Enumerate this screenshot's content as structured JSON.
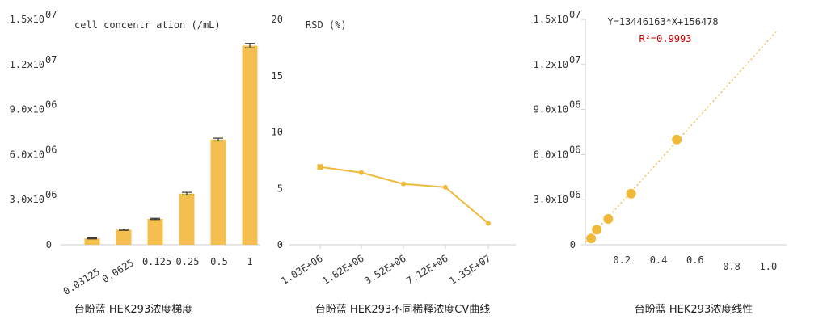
{
  "chart_data": [
    {
      "type": "bar",
      "title": "cell concentr ation (/mL)",
      "caption": "台盼蓝 HEK293浓度梯度",
      "categories": [
        "0.03125",
        "0.0625",
        "0.125",
        "0.25",
        "0.5",
        "1"
      ],
      "values": [
        420000,
        1000000,
        1720000,
        3400000,
        7000000,
        13250000
      ],
      "errors": [
        30000,
        40000,
        40000,
        90000,
        90000,
        150000
      ],
      "ylim": [
        0,
        15000000
      ],
      "yticks": [
        0,
        3000000,
        6000000,
        9000000,
        12000000,
        15000000
      ],
      "ytick_labels": [
        "0",
        "3.0x10^06",
        "6.0x10^06",
        "9.0x10^06",
        "1.2x10^07",
        "1.5x10^07"
      ],
      "color": "#f4bf4f",
      "error_color": "#333333",
      "grid": false
    },
    {
      "type": "line",
      "title": "RSD (%)",
      "caption": "台盼蓝 HEK293不同稀释浓度CV曲线",
      "categories": [
        "1.03E+06",
        "1.82E+06",
        "3.52E+06",
        "7.12E+06",
        "1.35E+07"
      ],
      "values": [
        6.9,
        6.4,
        5.4,
        5.1,
        1.9
      ],
      "ylim": [
        0,
        20
      ],
      "yticks": [
        0,
        5,
        10,
        15,
        20
      ],
      "ytick_labels": [
        "0",
        "5",
        "10",
        "15",
        "20"
      ],
      "color": "#f0b93a",
      "grid": false
    },
    {
      "type": "scatter",
      "caption": "台盼蓝 HEK293浓度线性",
      "x": [
        0.03125,
        0.0625,
        0.125,
        0.25,
        0.5
      ],
      "y": [
        420000,
        1000000,
        1720000,
        3400000,
        7000000
      ],
      "xlim": [
        0,
        1.1
      ],
      "ylim": [
        0,
        15000000
      ],
      "xticks": [
        0.2,
        0.4,
        0.6,
        0.8,
        1.0
      ],
      "xtick_labels": [
        "0.2",
        "0.4",
        "0.6",
        "0.8",
        "1.0"
      ],
      "yticks": [
        0,
        3000000,
        6000000,
        9000000,
        12000000,
        15000000
      ],
      "ytick_labels": [
        "0",
        "3.0x10^06",
        "6.0x10^06",
        "9.0x10^06",
        "1.2x10^07",
        "1.5x10^07"
      ],
      "fit": {
        "equation": "Y=13446163*X+156478",
        "r2_label": "R²=0.9993",
        "slope": 13446163,
        "intercept": 156478
      },
      "color": "#f0b93a",
      "fit_color": "#f0b93a",
      "r2_color": "#cc0000",
      "grid": false
    }
  ]
}
